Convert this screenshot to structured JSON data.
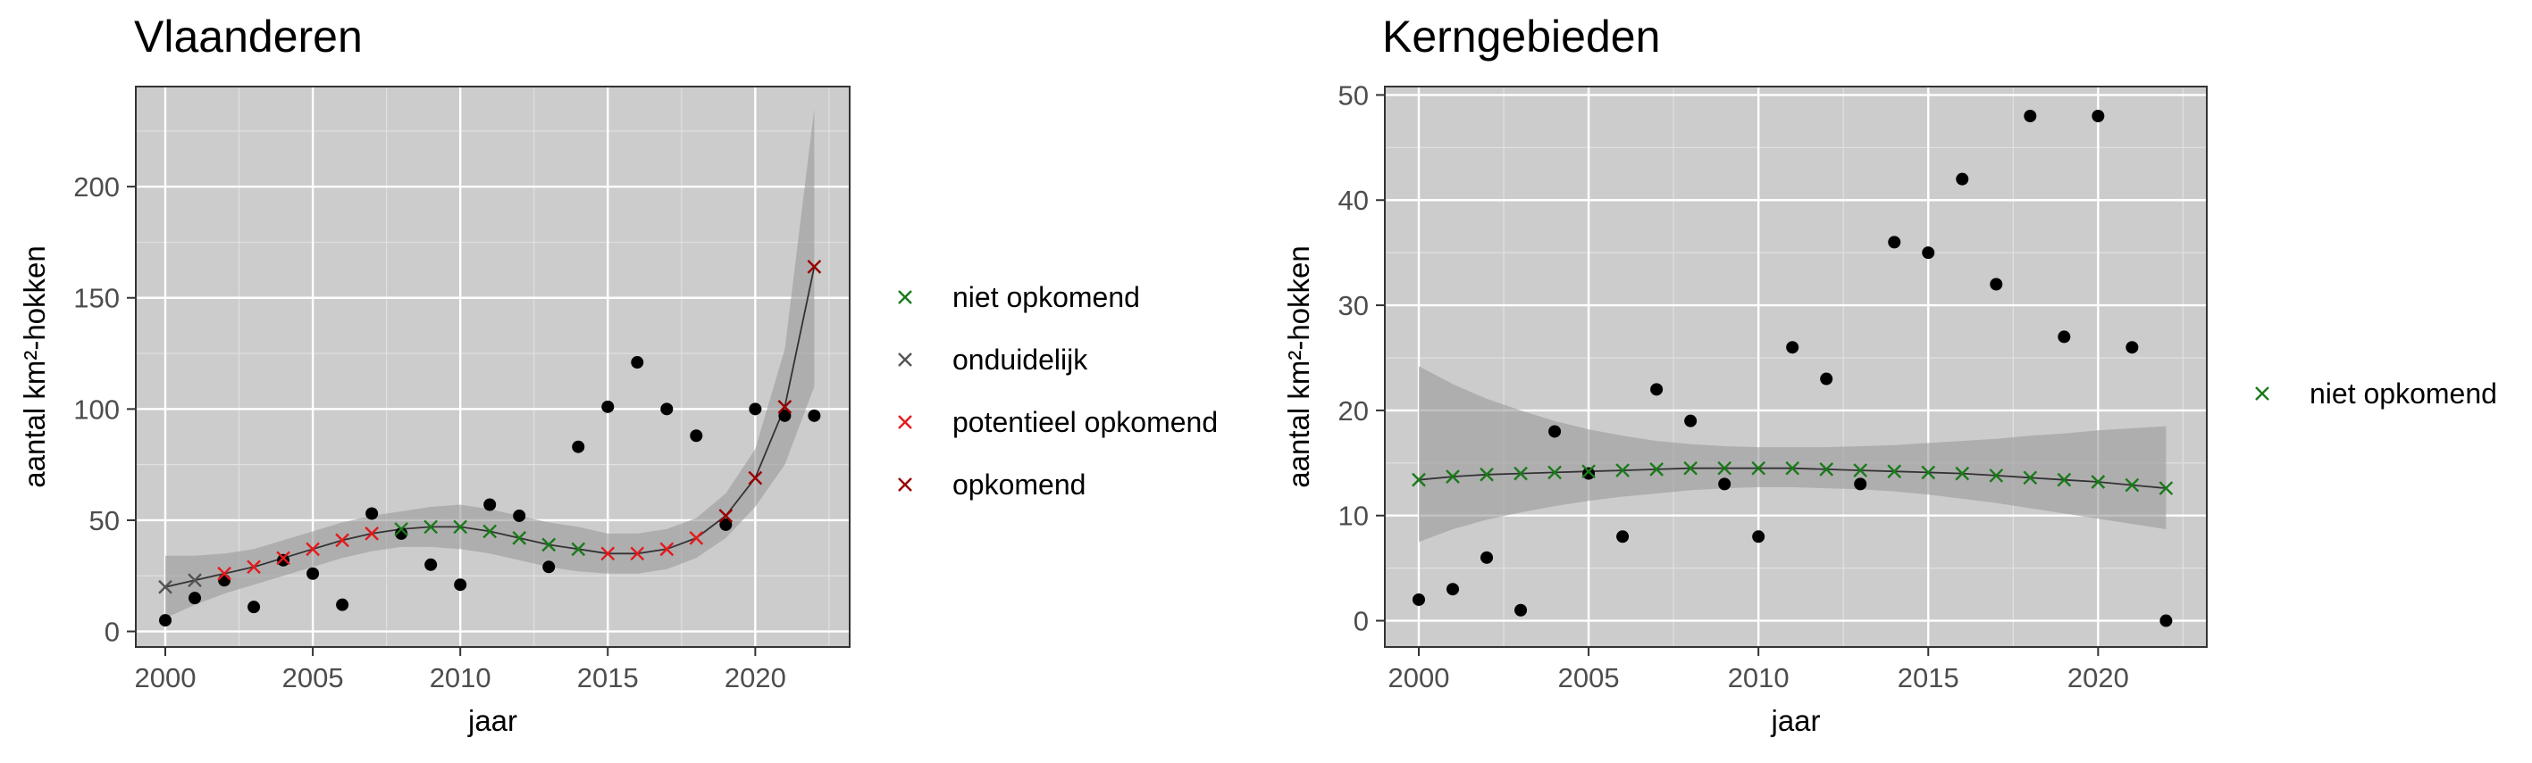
{
  "chart_data": [
    {
      "type": "scatter",
      "title": "Vlaanderen",
      "xlabel": "jaar",
      "ylabel": "aantal km²-hokken",
      "xlim": [
        1999,
        2023.2
      ],
      "ylim": [
        -7,
        245
      ],
      "xticks": [
        2000,
        2005,
        2010,
        2015,
        2020
      ],
      "yticks": [
        0,
        50,
        100,
        150,
        200
      ],
      "grid": true,
      "legend_position": "right",
      "observed": {
        "x": [
          2000,
          2001,
          2002,
          2003,
          2004,
          2005,
          2006,
          2007,
          2008,
          2009,
          2010,
          2011,
          2012,
          2013,
          2014,
          2015,
          2016,
          2017,
          2018,
          2019,
          2020,
          2021,
          2022
        ],
        "y": [
          5,
          15,
          23,
          11,
          32,
          26,
          12,
          53,
          44,
          30,
          21,
          57,
          52,
          29,
          83,
          101,
          121,
          100,
          88,
          48,
          100,
          97,
          97
        ]
      },
      "trend": {
        "x": [
          2000,
          2001,
          2002,
          2003,
          2004,
          2005,
          2006,
          2007,
          2008,
          2009,
          2010,
          2011,
          2012,
          2013,
          2014,
          2015,
          2016,
          2017,
          2018,
          2019,
          2020,
          2021,
          2022
        ],
        "y": [
          20,
          23,
          26,
          29,
          33,
          37,
          41,
          44,
          46,
          47,
          47,
          45,
          42,
          39,
          37,
          35,
          35,
          37,
          42,
          52,
          69,
          101,
          164
        ],
        "lower": [
          6,
          12,
          17,
          21,
          25,
          29,
          33,
          36,
          38,
          38,
          37,
          35,
          32,
          29,
          27,
          26,
          26,
          28,
          33,
          42,
          56,
          75,
          110
        ],
        "upper": [
          34,
          34,
          35,
          37,
          41,
          45,
          49,
          52,
          54,
          56,
          57,
          55,
          52,
          49,
          47,
          44,
          44,
          46,
          51,
          62,
          82,
          127,
          235
        ],
        "status": [
          "onduidelijk",
          "onduidelijk",
          "potentieel opkomend",
          "potentieel opkomend",
          "potentieel opkomend",
          "potentieel opkomend",
          "potentieel opkomend",
          "potentieel opkomend",
          "niet opkomend",
          "niet opkomend",
          "niet opkomend",
          "niet opkomend",
          "niet opkomend",
          "niet opkomend",
          "niet opkomend",
          "potentieel opkomend",
          "potentieel opkomend",
          "potentieel opkomend",
          "potentieel opkomend",
          "opkomend",
          "opkomend",
          "opkomend",
          "opkomend"
        ]
      },
      "legend": [
        {
          "label": "niet opkomend",
          "color": "#1a7a1a"
        },
        {
          "label": "onduidelijk",
          "color": "#555555"
        },
        {
          "label": "potentieel opkomend",
          "color": "#e41a1c"
        },
        {
          "label": "opkomend",
          "color": "#990000"
        }
      ]
    },
    {
      "type": "scatter",
      "title": "Kerngebieden",
      "xlabel": "jaar",
      "ylabel": "aantal km²-hokken",
      "xlim": [
        999,
        2023.2
      ],
      "ylim": [
        -2.5,
        50.8
      ],
      "xticks": [
        2000,
        2005,
        2010,
        2015,
        2020
      ],
      "yticks": [
        0,
        10,
        20,
        30,
        40,
        50
      ],
      "grid": true,
      "legend_position": "right",
      "observed": {
        "x": [
          2000,
          2001,
          2002,
          2003,
          2004,
          2005,
          2006,
          2007,
          2008,
          2009,
          2010,
          2011,
          2012,
          2013,
          2014,
          2015,
          2016,
          2017,
          2018,
          2019,
          2020,
          2021,
          2022
        ],
        "y": [
          2,
          3,
          6,
          1,
          18,
          14,
          8,
          22,
          19,
          13,
          8,
          26,
          23,
          13,
          36,
          35,
          42,
          32,
          48,
          27,
          48,
          26,
          0
        ]
      },
      "trend": {
        "x": [
          2000,
          2001,
          2002,
          2003,
          2004,
          2005,
          2006,
          2007,
          2008,
          2009,
          2010,
          2011,
          2012,
          2013,
          2014,
          2015,
          2016,
          2017,
          2018,
          2019,
          2020,
          2021,
          2022
        ],
        "y": [
          13.4,
          13.7,
          13.9,
          14.0,
          14.1,
          14.2,
          14.3,
          14.4,
          14.5,
          14.5,
          14.5,
          14.5,
          14.4,
          14.3,
          14.2,
          14.1,
          14.0,
          13.8,
          13.6,
          13.4,
          13.2,
          12.9,
          12.6
        ],
        "lower": [
          7.5,
          8.7,
          9.6,
          10.3,
          10.9,
          11.4,
          11.8,
          12.1,
          12.4,
          12.6,
          12.7,
          12.7,
          12.6,
          12.5,
          12.3,
          12.0,
          11.6,
          11.2,
          10.7,
          10.2,
          9.7,
          9.2,
          8.7
        ],
        "upper": [
          24.2,
          22.5,
          21.1,
          20.0,
          19.0,
          18.2,
          17.6,
          17.1,
          16.8,
          16.6,
          16.5,
          16.5,
          16.5,
          16.6,
          16.7,
          16.9,
          17.1,
          17.3,
          17.6,
          17.8,
          18.1,
          18.3,
          18.5
        ],
        "status": [
          "niet opkomend",
          "niet opkomend",
          "niet opkomend",
          "niet opkomend",
          "niet opkomend",
          "niet opkomend",
          "niet opkomend",
          "niet opkomend",
          "niet opkomend",
          "niet opkomend",
          "niet opkomend",
          "niet opkomend",
          "niet opkomend",
          "niet opkomend",
          "niet opkomend",
          "niet opkomend",
          "niet opkomend",
          "niet opkomend",
          "niet opkomend",
          "niet opkomend",
          "niet opkomend",
          "niet opkomend",
          "niet opkomend"
        ]
      },
      "legend": [
        {
          "label": "niet opkomend",
          "color": "#1a7a1a"
        }
      ]
    }
  ]
}
